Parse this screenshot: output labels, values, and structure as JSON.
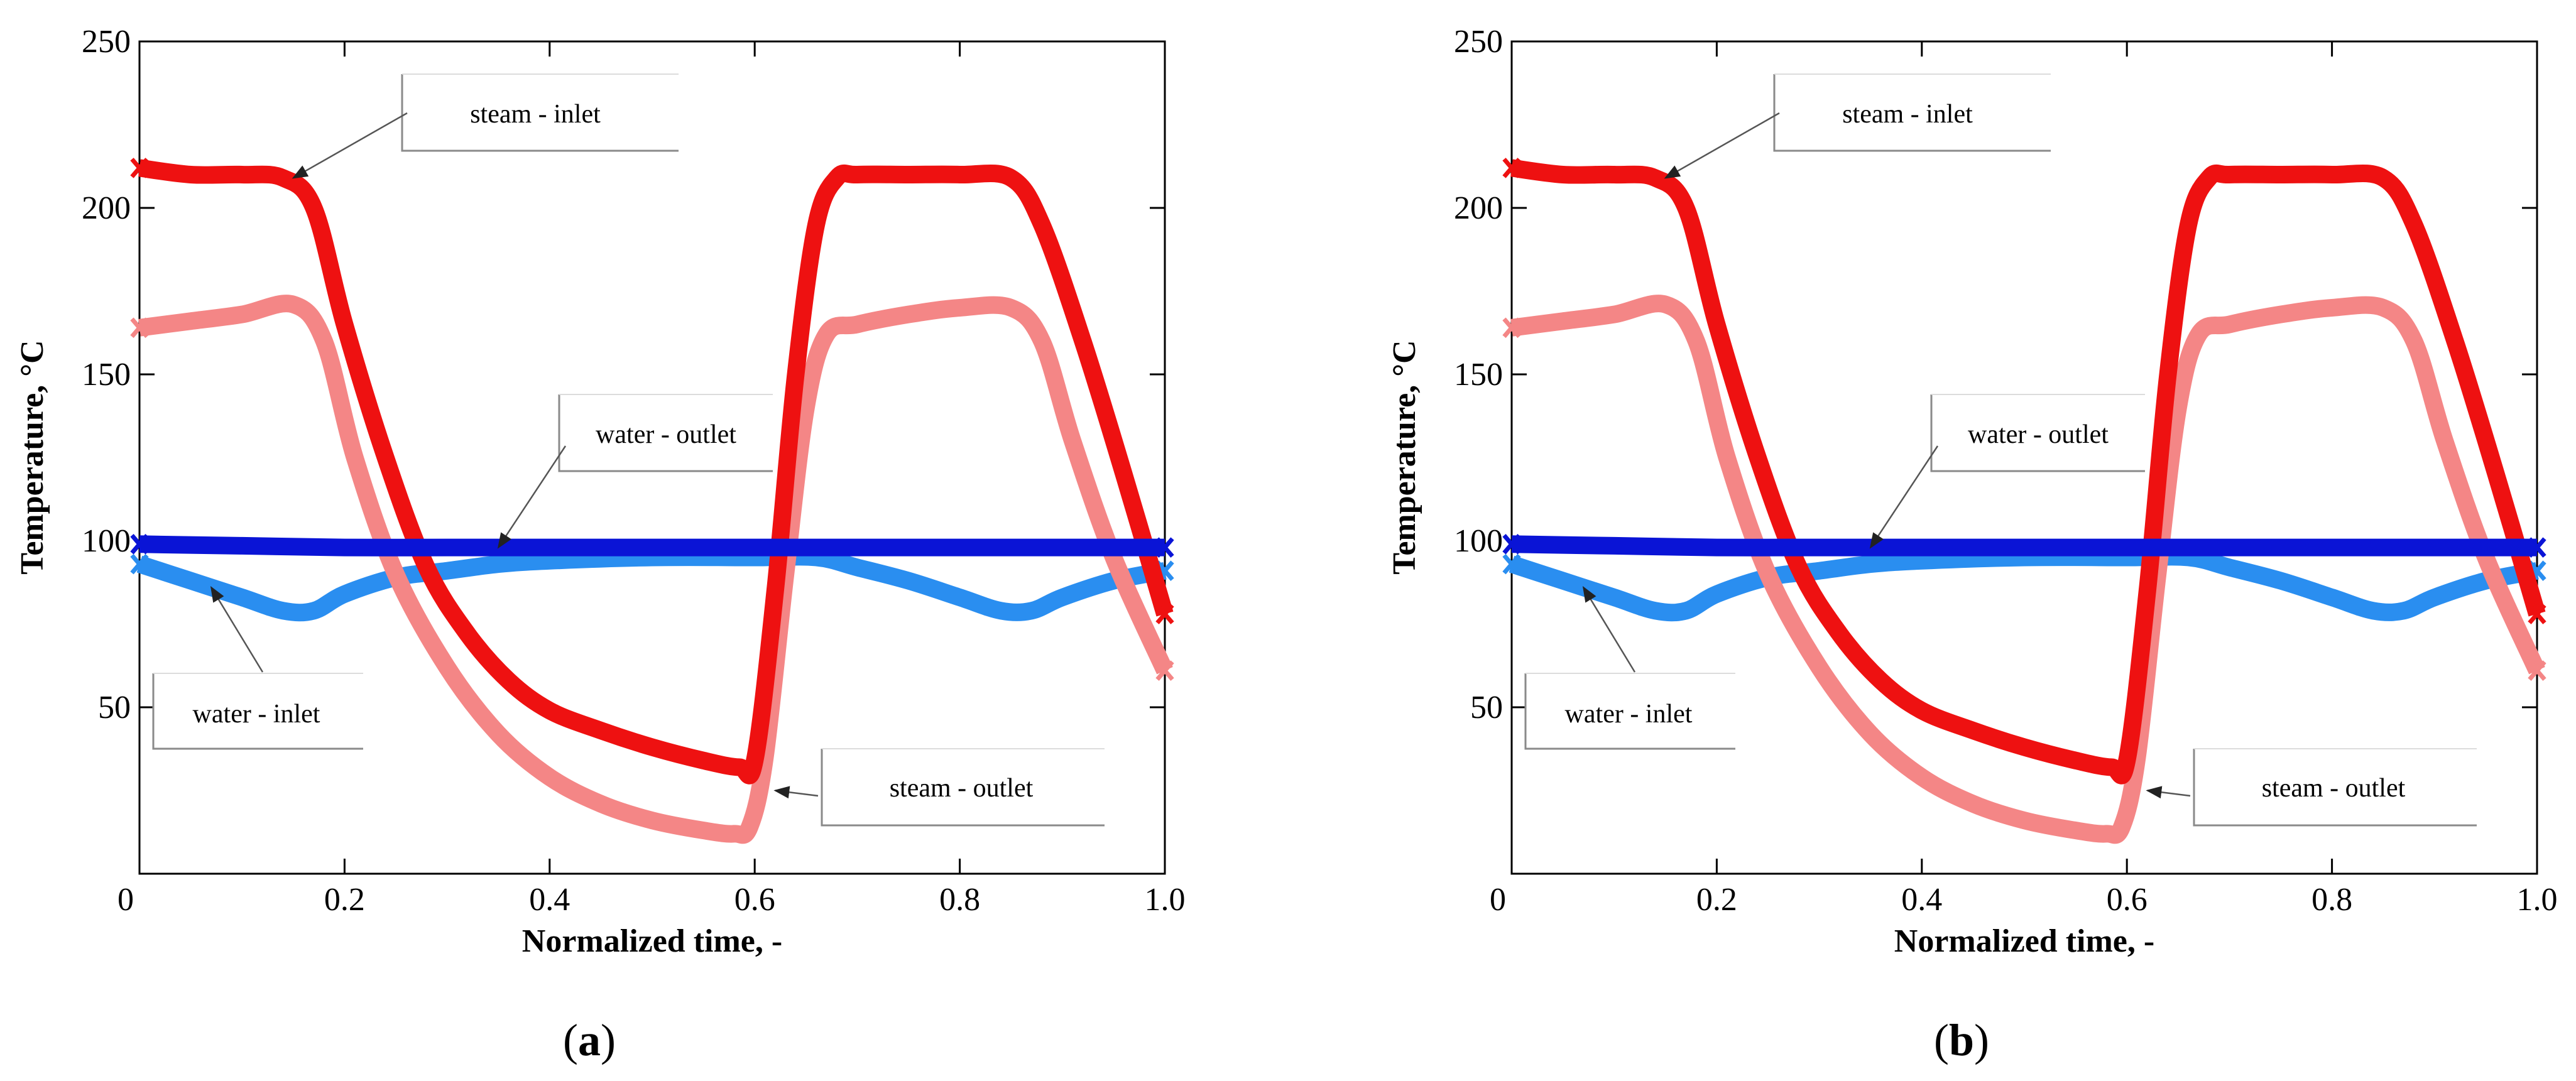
{
  "chart_data": [
    {
      "panel_label": "a",
      "type": "line",
      "title": "",
      "xlabel": "Normalized time, -",
      "ylabel": "Temperature, °C",
      "xlim": [
        0,
        1.0
      ],
      "ylim": [
        0,
        250
      ],
      "xticks": [
        0,
        0.2,
        0.4,
        0.6,
        0.8,
        1.0
      ],
      "xtick_labels": [
        "0",
        "0.2",
        "0.4",
        "0.6",
        "0.8",
        "1.0"
      ],
      "yticks": [
        50,
        100,
        150,
        200,
        250
      ],
      "ytick_labels": [
        "50",
        "100",
        "150",
        "200",
        "250"
      ],
      "grid": false,
      "series": [
        {
          "name": "steam - inlet",
          "color": "#ee1111",
          "x": [
            0,
            0.05,
            0.1,
            0.14,
            0.17,
            0.2,
            0.24,
            0.28,
            0.32,
            0.36,
            0.4,
            0.45,
            0.5,
            0.55,
            0.585,
            0.6,
            0.62,
            0.64,
            0.66,
            0.68,
            0.7,
            0.75,
            0.8,
            0.85,
            0.88,
            0.92,
            0.96,
            1.0
          ],
          "y": [
            212,
            210,
            210,
            209,
            200,
            165,
            125,
            92,
            72,
            58,
            49,
            43,
            38,
            34,
            32,
            34,
            85,
            150,
            195,
            209,
            210,
            210,
            210,
            209,
            195,
            160,
            120,
            78
          ]
        },
        {
          "name": "steam - outlet",
          "color": "#f48686",
          "x": [
            0,
            0.05,
            0.1,
            0.15,
            0.18,
            0.21,
            0.25,
            0.3,
            0.35,
            0.4,
            0.45,
            0.5,
            0.55,
            0.58,
            0.595,
            0.61,
            0.63,
            0.65,
            0.67,
            0.7,
            0.75,
            0.8,
            0.85,
            0.88,
            0.91,
            0.95,
            1.0
          ],
          "y": [
            164,
            166,
            168,
            171,
            160,
            125,
            90,
            62,
            42,
            29,
            21,
            16,
            13,
            12,
            14,
            35,
            90,
            140,
            162,
            165,
            168,
            170,
            170,
            160,
            130,
            95,
            61
          ]
        },
        {
          "name": "water - outlet",
          "color": "#0a14d6",
          "x": [
            0,
            0.1,
            0.2,
            0.3,
            0.4,
            0.5,
            0.6,
            0.7,
            0.8,
            0.9,
            1.0
          ],
          "y": [
            99,
            98.5,
            98,
            98,
            98,
            98,
            98,
            98,
            98,
            98,
            98
          ]
        },
        {
          "name": "water - inlet",
          "color": "#2a8ef0",
          "x": [
            0,
            0.05,
            0.1,
            0.14,
            0.17,
            0.2,
            0.25,
            0.3,
            0.35,
            0.4,
            0.5,
            0.6,
            0.66,
            0.7,
            0.75,
            0.8,
            0.84,
            0.87,
            0.9,
            0.95,
            1.0
          ],
          "y": [
            93,
            88,
            83,
            79,
            79,
            84,
            89,
            91,
            93,
            94,
            95,
            95,
            95,
            92,
            88,
            83,
            79,
            79,
            83,
            88,
            91
          ]
        }
      ],
      "annotations": [
        {
          "text": "steam - inlet",
          "series": "steam - inlet",
          "x": 0.15,
          "y": 209
        },
        {
          "text": "water - outlet",
          "series": "water - outlet",
          "x": 0.35,
          "y": 98
        },
        {
          "text": "water - inlet",
          "series": "water - inlet",
          "x": 0.07,
          "y": 86
        },
        {
          "text": "steam - outlet",
          "series": "steam - outlet",
          "x": 0.62,
          "y": 25
        }
      ]
    },
    {
      "panel_label": "b",
      "type": "line",
      "title": "",
      "xlabel": "Normalized time, -",
      "ylabel": "Temperature, °C",
      "xlim": [
        0,
        1.0
      ],
      "ylim": [
        0,
        250
      ],
      "xticks": [
        0,
        0.2,
        0.4,
        0.6,
        0.8,
        1.0
      ],
      "xtick_labels": [
        "0",
        "0.2",
        "0.4",
        "0.6",
        "0.8",
        "1.0"
      ],
      "yticks": [
        50,
        100,
        150,
        200,
        250
      ],
      "ytick_labels": [
        "50",
        "100",
        "150",
        "200",
        "250"
      ],
      "grid": false,
      "series": [
        {
          "name": "steam - inlet",
          "color": "#ee1111",
          "x": [
            0,
            0.05,
            0.1,
            0.14,
            0.17,
            0.2,
            0.24,
            0.28,
            0.32,
            0.36,
            0.4,
            0.45,
            0.5,
            0.55,
            0.585,
            0.6,
            0.62,
            0.64,
            0.66,
            0.68,
            0.7,
            0.75,
            0.8,
            0.85,
            0.88,
            0.92,
            0.96,
            1.0
          ],
          "y": [
            212,
            210,
            210,
            209,
            200,
            165,
            125,
            92,
            72,
            58,
            49,
            43,
            38,
            34,
            32,
            34,
            85,
            150,
            195,
            209,
            210,
            210,
            210,
            209,
            195,
            160,
            120,
            78
          ]
        },
        {
          "name": "steam - outlet",
          "color": "#f48686",
          "x": [
            0,
            0.05,
            0.1,
            0.15,
            0.18,
            0.21,
            0.25,
            0.3,
            0.35,
            0.4,
            0.45,
            0.5,
            0.55,
            0.58,
            0.595,
            0.61,
            0.63,
            0.65,
            0.67,
            0.7,
            0.75,
            0.8,
            0.85,
            0.88,
            0.91,
            0.95,
            1.0
          ],
          "y": [
            164,
            166,
            168,
            171,
            160,
            125,
            90,
            62,
            42,
            29,
            21,
            16,
            13,
            12,
            14,
            35,
            90,
            140,
            162,
            165,
            168,
            170,
            170,
            160,
            130,
            95,
            61
          ]
        },
        {
          "name": "water - outlet",
          "color": "#0a14d6",
          "x": [
            0,
            0.1,
            0.2,
            0.3,
            0.4,
            0.5,
            0.6,
            0.7,
            0.8,
            0.9,
            1.0
          ],
          "y": [
            99,
            98.5,
            98,
            98,
            98,
            98,
            98,
            98,
            98,
            98,
            98
          ]
        },
        {
          "name": "water - inlet",
          "color": "#2a8ef0",
          "x": [
            0,
            0.05,
            0.1,
            0.14,
            0.17,
            0.2,
            0.25,
            0.3,
            0.35,
            0.4,
            0.5,
            0.6,
            0.66,
            0.7,
            0.75,
            0.8,
            0.84,
            0.87,
            0.9,
            0.95,
            1.0
          ],
          "y": [
            93,
            88,
            83,
            79,
            79,
            84,
            89,
            91,
            93,
            94,
            95,
            95,
            95,
            92,
            88,
            83,
            79,
            79,
            83,
            88,
            91
          ]
        }
      ],
      "annotations": [
        {
          "text": "steam - inlet",
          "series": "steam - inlet",
          "x": 0.15,
          "y": 209
        },
        {
          "text": "water - outlet",
          "series": "water - outlet",
          "x": 0.35,
          "y": 98
        },
        {
          "text": "water - inlet",
          "series": "water - inlet",
          "x": 0.07,
          "y": 86
        },
        {
          "text": "steam - outlet",
          "series": "steam - outlet",
          "x": 0.62,
          "y": 25
        }
      ]
    }
  ]
}
